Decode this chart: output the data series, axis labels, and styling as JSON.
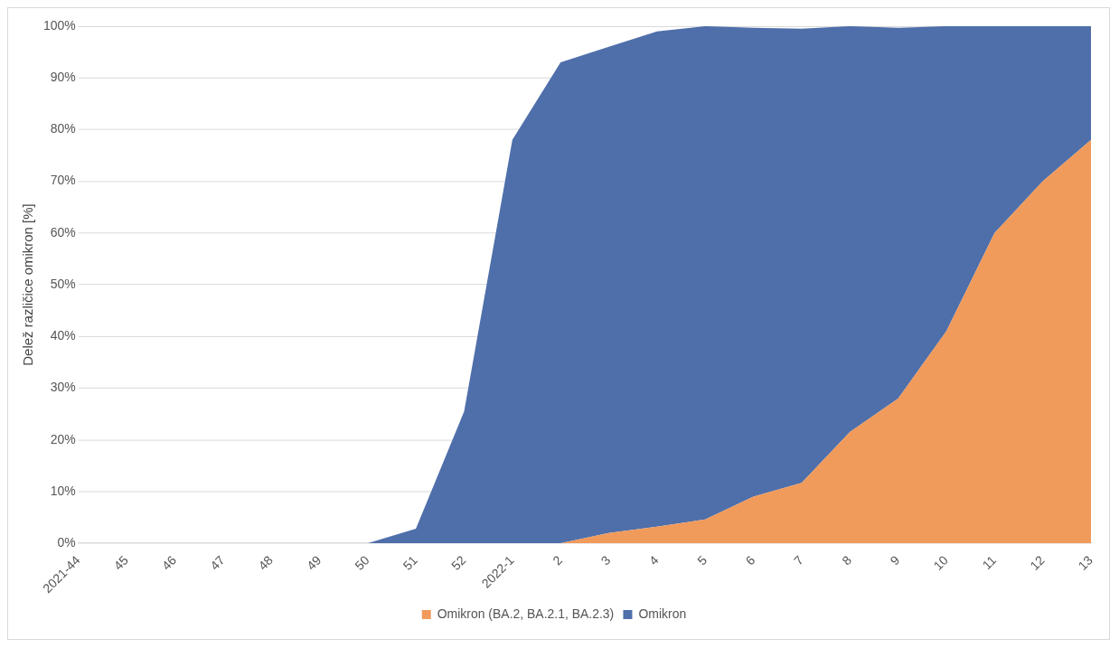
{
  "chart_data": {
    "type": "area",
    "stacked": true,
    "ylabel": "Delež različice omikron [%]",
    "categories": [
      "2021-44",
      "45",
      "46",
      "47",
      "48",
      "49",
      "50",
      "51",
      "52",
      "2022-1",
      "2",
      "3",
      "4",
      "5",
      "6",
      "7",
      "8",
      "9",
      "10",
      "11",
      "12",
      "13"
    ],
    "series": [
      {
        "name": "Omikron (BA.2, BA.2.1, BA.2.3)",
        "color": "#f09a5b",
        "values": [
          0,
          0,
          0,
          0,
          0,
          0,
          0,
          0,
          0,
          0,
          0,
          2,
          3.2,
          4.6,
          9,
          11.7,
          21.5,
          28,
          41,
          60,
          70,
          78
        ]
      },
      {
        "name": "Omikron",
        "color": "#4f6faa",
        "values": [
          0,
          0,
          0,
          0,
          0,
          0,
          0,
          2.8,
          25.5,
          78,
          93,
          94,
          95.8,
          95.4,
          90.7,
          87.8,
          78.5,
          71.7,
          59,
          40,
          30,
          22
        ]
      }
    ],
    "ylim": [
      0,
      100
    ],
    "yticks": [
      {
        "value": 0,
        "label": "0%"
      },
      {
        "value": 10,
        "label": "10%"
      },
      {
        "value": 20,
        "label": "20%"
      },
      {
        "value": 30,
        "label": "30%"
      },
      {
        "value": 40,
        "label": "40%"
      },
      {
        "value": 50,
        "label": "50%"
      },
      {
        "value": 60,
        "label": "60%"
      },
      {
        "value": 70,
        "label": "70%"
      },
      {
        "value": 80,
        "label": "80%"
      },
      {
        "value": 90,
        "label": "90%"
      },
      {
        "value": 100,
        "label": "100%"
      }
    ],
    "grid": "y",
    "legend": "bottom",
    "marker": "none"
  }
}
